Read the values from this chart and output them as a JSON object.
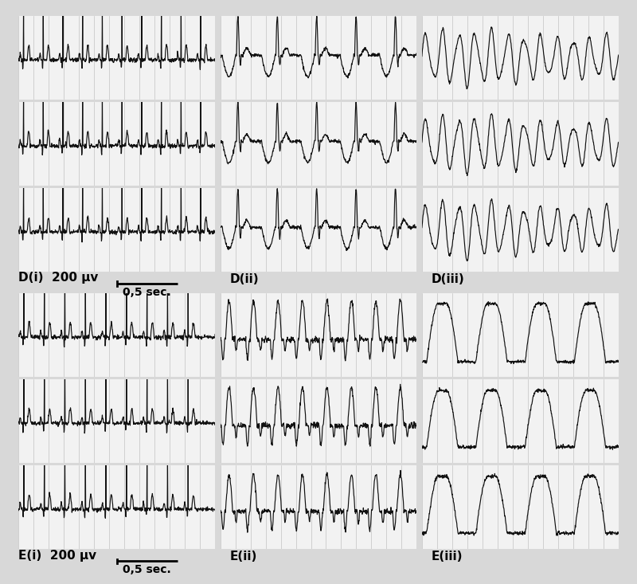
{
  "background_color": "#d8d8d8",
  "panel_bg": "#f2f2f2",
  "grid_color": "#999999",
  "trace_color": "#111111",
  "n_cols": 3,
  "n_rows": 2,
  "panel_labels_row0": [
    "D(i)",
    "D(ii)",
    "D(iii)"
  ],
  "panel_labels_row1": [
    "E(i)",
    "E(ii)",
    "E(iii)"
  ],
  "scale_label": "200 μv",
  "time_label": "0,5 sec.",
  "n_traces_per_panel": 3,
  "n_grid_lines": 13,
  "label_fontsize": 11,
  "scale_fontsize": 10
}
